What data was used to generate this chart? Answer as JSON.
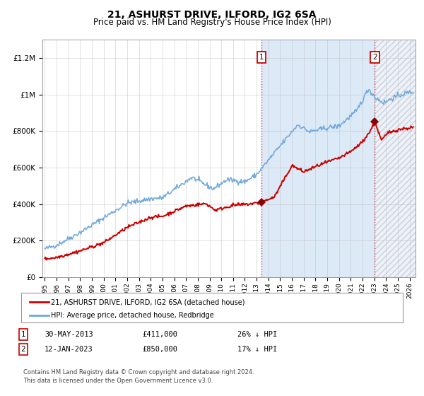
{
  "title": "21, ASHURST DRIVE, ILFORD, IG2 6SA",
  "subtitle": "Price paid vs. HM Land Registry's House Price Index (HPI)",
  "ylim": [
    0,
    1300000
  ],
  "xlim_start": 1994.8,
  "xlim_end": 2026.5,
  "yticks": [
    0,
    200000,
    400000,
    600000,
    800000,
    1000000,
    1200000
  ],
  "ytick_labels": [
    "£0",
    "£200K",
    "£400K",
    "£600K",
    "£800K",
    "£1M",
    "£1.2M"
  ],
  "xtick_years": [
    1995,
    1996,
    1997,
    1998,
    1999,
    2000,
    2001,
    2002,
    2003,
    2004,
    2005,
    2006,
    2007,
    2008,
    2009,
    2010,
    2011,
    2012,
    2013,
    2014,
    2015,
    2016,
    2017,
    2018,
    2019,
    2020,
    2021,
    2022,
    2023,
    2024,
    2025,
    2026
  ],
  "sale1_date": 2013.41,
  "sale1_price": 411000,
  "sale2_date": 2023.04,
  "sale2_price": 850000,
  "hpi_color": "#6fa8dc",
  "price_color": "#cc0000",
  "sale_marker_color": "#8b0000",
  "bg_shaded_color": "#dce9f7",
  "grid_color": "#bbbbbb",
  "title_fontsize": 10,
  "subtitle_fontsize": 8.5,
  "legend1_text": "21, ASHURST DRIVE, ILFORD, IG2 6SA (detached house)",
  "legend2_text": "HPI: Average price, detached house, Redbridge",
  "footer": "Contains HM Land Registry data © Crown copyright and database right 2024.\nThis data is licensed under the Open Government Licence v3.0."
}
